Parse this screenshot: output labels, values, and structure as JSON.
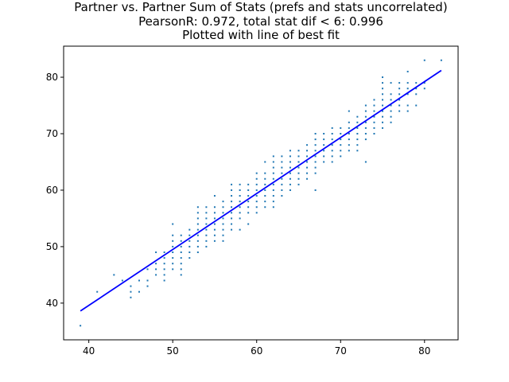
{
  "chart_data": {
    "type": "scatter",
    "title_lines": [
      "Partner vs. Partner Sum of Stats (prefs and stats uncorrelated)",
      "PearsonR: 0.972, total stat dif < 6: 0.996",
      "Plotted with line of best fit"
    ],
    "xlabel": "",
    "ylabel": "",
    "xlim": [
      37,
      84
    ],
    "ylim": [
      33.5,
      85.5
    ],
    "xticks": [
      40,
      50,
      60,
      70,
      80
    ],
    "yticks": [
      40,
      50,
      60,
      70,
      80
    ],
    "grid": false,
    "colors": {
      "points": "#1f77b4",
      "fit_line": "#0000ff"
    },
    "fit_line": {
      "x": [
        39,
        82
      ],
      "y": [
        38.6,
        81.2
      ]
    },
    "points": [
      [
        39,
        36
      ],
      [
        41,
        42
      ],
      [
        43,
        45
      ],
      [
        44,
        44
      ],
      [
        45,
        41
      ],
      [
        45,
        42
      ],
      [
        45,
        43
      ],
      [
        46,
        42
      ],
      [
        46,
        44
      ],
      [
        47,
        43
      ],
      [
        47,
        44
      ],
      [
        47,
        46
      ],
      [
        48,
        45
      ],
      [
        48,
        46
      ],
      [
        48,
        47
      ],
      [
        48,
        49
      ],
      [
        49,
        44
      ],
      [
        49,
        45
      ],
      [
        49,
        46
      ],
      [
        49,
        47
      ],
      [
        49,
        48
      ],
      [
        49,
        49
      ],
      [
        50,
        46
      ],
      [
        50,
        47
      ],
      [
        50,
        48
      ],
      [
        50,
        49
      ],
      [
        50,
        50
      ],
      [
        50,
        51
      ],
      [
        50,
        52
      ],
      [
        50,
        54
      ],
      [
        51,
        45
      ],
      [
        51,
        46
      ],
      [
        51,
        47
      ],
      [
        51,
        48
      ],
      [
        51,
        49
      ],
      [
        51,
        50
      ],
      [
        51,
        51
      ],
      [
        51,
        52
      ],
      [
        52,
        48
      ],
      [
        52,
        49
      ],
      [
        52,
        50
      ],
      [
        52,
        51
      ],
      [
        52,
        52
      ],
      [
        52,
        53
      ],
      [
        53,
        49
      ],
      [
        53,
        50
      ],
      [
        53,
        51
      ],
      [
        53,
        52
      ],
      [
        53,
        53
      ],
      [
        53,
        54
      ],
      [
        53,
        55
      ],
      [
        53,
        56
      ],
      [
        53,
        57
      ],
      [
        54,
        50
      ],
      [
        54,
        51
      ],
      [
        54,
        52
      ],
      [
        54,
        53
      ],
      [
        54,
        54
      ],
      [
        54,
        55
      ],
      [
        54,
        56
      ],
      [
        54,
        57
      ],
      [
        55,
        51
      ],
      [
        55,
        52
      ],
      [
        55,
        53
      ],
      [
        55,
        54
      ],
      [
        55,
        55
      ],
      [
        55,
        56
      ],
      [
        55,
        57
      ],
      [
        55,
        59
      ],
      [
        56,
        51
      ],
      [
        56,
        52
      ],
      [
        56,
        53
      ],
      [
        56,
        54
      ],
      [
        56,
        55
      ],
      [
        56,
        56
      ],
      [
        56,
        57
      ],
      [
        56,
        58
      ],
      [
        57,
        53
      ],
      [
        57,
        54
      ],
      [
        57,
        55
      ],
      [
        57,
        56
      ],
      [
        57,
        57
      ],
      [
        57,
        58
      ],
      [
        57,
        59
      ],
      [
        57,
        60
      ],
      [
        57,
        61
      ],
      [
        58,
        53
      ],
      [
        58,
        55
      ],
      [
        58,
        56
      ],
      [
        58,
        57
      ],
      [
        58,
        58
      ],
      [
        58,
        59
      ],
      [
        58,
        60
      ],
      [
        58,
        61
      ],
      [
        59,
        54
      ],
      [
        59,
        56
      ],
      [
        59,
        57
      ],
      [
        59,
        58
      ],
      [
        59,
        59
      ],
      [
        59,
        60
      ],
      [
        59,
        61
      ],
      [
        60,
        56
      ],
      [
        60,
        57
      ],
      [
        60,
        58
      ],
      [
        60,
        59
      ],
      [
        60,
        60
      ],
      [
        60,
        61
      ],
      [
        60,
        62
      ],
      [
        60,
        63
      ],
      [
        61,
        57
      ],
      [
        61,
        58
      ],
      [
        61,
        59
      ],
      [
        61,
        60
      ],
      [
        61,
        61
      ],
      [
        61,
        62
      ],
      [
        61,
        63
      ],
      [
        61,
        65
      ],
      [
        62,
        57
      ],
      [
        62,
        58
      ],
      [
        62,
        59
      ],
      [
        62,
        60
      ],
      [
        62,
        61
      ],
      [
        62,
        62
      ],
      [
        62,
        63
      ],
      [
        62,
        64
      ],
      [
        62,
        65
      ],
      [
        62,
        66
      ],
      [
        63,
        59
      ],
      [
        63,
        60
      ],
      [
        63,
        61
      ],
      [
        63,
        62
      ],
      [
        63,
        63
      ],
      [
        63,
        64
      ],
      [
        63,
        65
      ],
      [
        63,
        66
      ],
      [
        64,
        60
      ],
      [
        64,
        61
      ],
      [
        64,
        62
      ],
      [
        64,
        63
      ],
      [
        64,
        64
      ],
      [
        64,
        65
      ],
      [
        64,
        66
      ],
      [
        64,
        67
      ],
      [
        65,
        61
      ],
      [
        65,
        62
      ],
      [
        65,
        63
      ],
      [
        65,
        64
      ],
      [
        65,
        65
      ],
      [
        65,
        66
      ],
      [
        65,
        67
      ],
      [
        66,
        62
      ],
      [
        66,
        63
      ],
      [
        66,
        64
      ],
      [
        66,
        65
      ],
      [
        66,
        66
      ],
      [
        66,
        67
      ],
      [
        66,
        68
      ],
      [
        67,
        60
      ],
      [
        67,
        63
      ],
      [
        67,
        64
      ],
      [
        67,
        65
      ],
      [
        67,
        66
      ],
      [
        67,
        67
      ],
      [
        67,
        68
      ],
      [
        67,
        69
      ],
      [
        67,
        70
      ],
      [
        68,
        65
      ],
      [
        68,
        66
      ],
      [
        68,
        67
      ],
      [
        68,
        68
      ],
      [
        68,
        69
      ],
      [
        68,
        70
      ],
      [
        69,
        65
      ],
      [
        69,
        66
      ],
      [
        69,
        67
      ],
      [
        69,
        68
      ],
      [
        69,
        69
      ],
      [
        69,
        70
      ],
      [
        69,
        71
      ],
      [
        70,
        66
      ],
      [
        70,
        67
      ],
      [
        70,
        68
      ],
      [
        70,
        69
      ],
      [
        70,
        70
      ],
      [
        70,
        71
      ],
      [
        71,
        67
      ],
      [
        71,
        68
      ],
      [
        71,
        69
      ],
      [
        71,
        70
      ],
      [
        71,
        71
      ],
      [
        71,
        72
      ],
      [
        71,
        74
      ],
      [
        72,
        67
      ],
      [
        72,
        68
      ],
      [
        72,
        69
      ],
      [
        72,
        70
      ],
      [
        72,
        71
      ],
      [
        72,
        72
      ],
      [
        72,
        73
      ],
      [
        73,
        65
      ],
      [
        73,
        69
      ],
      [
        73,
        70
      ],
      [
        73,
        71
      ],
      [
        73,
        72
      ],
      [
        73,
        73
      ],
      [
        73,
        74
      ],
      [
        73,
        75
      ],
      [
        74,
        70
      ],
      [
        74,
        71
      ],
      [
        74,
        72
      ],
      [
        74,
        73
      ],
      [
        74,
        74
      ],
      [
        74,
        75
      ],
      [
        74,
        76
      ],
      [
        75,
        71
      ],
      [
        75,
        72
      ],
      [
        75,
        73
      ],
      [
        75,
        74
      ],
      [
        75,
        75
      ],
      [
        75,
        76
      ],
      [
        75,
        77
      ],
      [
        75,
        78
      ],
      [
        75,
        79
      ],
      [
        75,
        80
      ],
      [
        76,
        72
      ],
      [
        76,
        73
      ],
      [
        76,
        74
      ],
      [
        76,
        75
      ],
      [
        76,
        76
      ],
      [
        76,
        77
      ],
      [
        76,
        79
      ],
      [
        77,
        74
      ],
      [
        77,
        75
      ],
      [
        77,
        76
      ],
      [
        77,
        77
      ],
      [
        77,
        78
      ],
      [
        77,
        79
      ],
      [
        78,
        74
      ],
      [
        78,
        75
      ],
      [
        78,
        77
      ],
      [
        78,
        78
      ],
      [
        78,
        79
      ],
      [
        78,
        81
      ],
      [
        79,
        75
      ],
      [
        79,
        77
      ],
      [
        79,
        78
      ],
      [
        79,
        79
      ],
      [
        80,
        78
      ],
      [
        80,
        79
      ],
      [
        80,
        83
      ],
      [
        82,
        83
      ]
    ]
  }
}
